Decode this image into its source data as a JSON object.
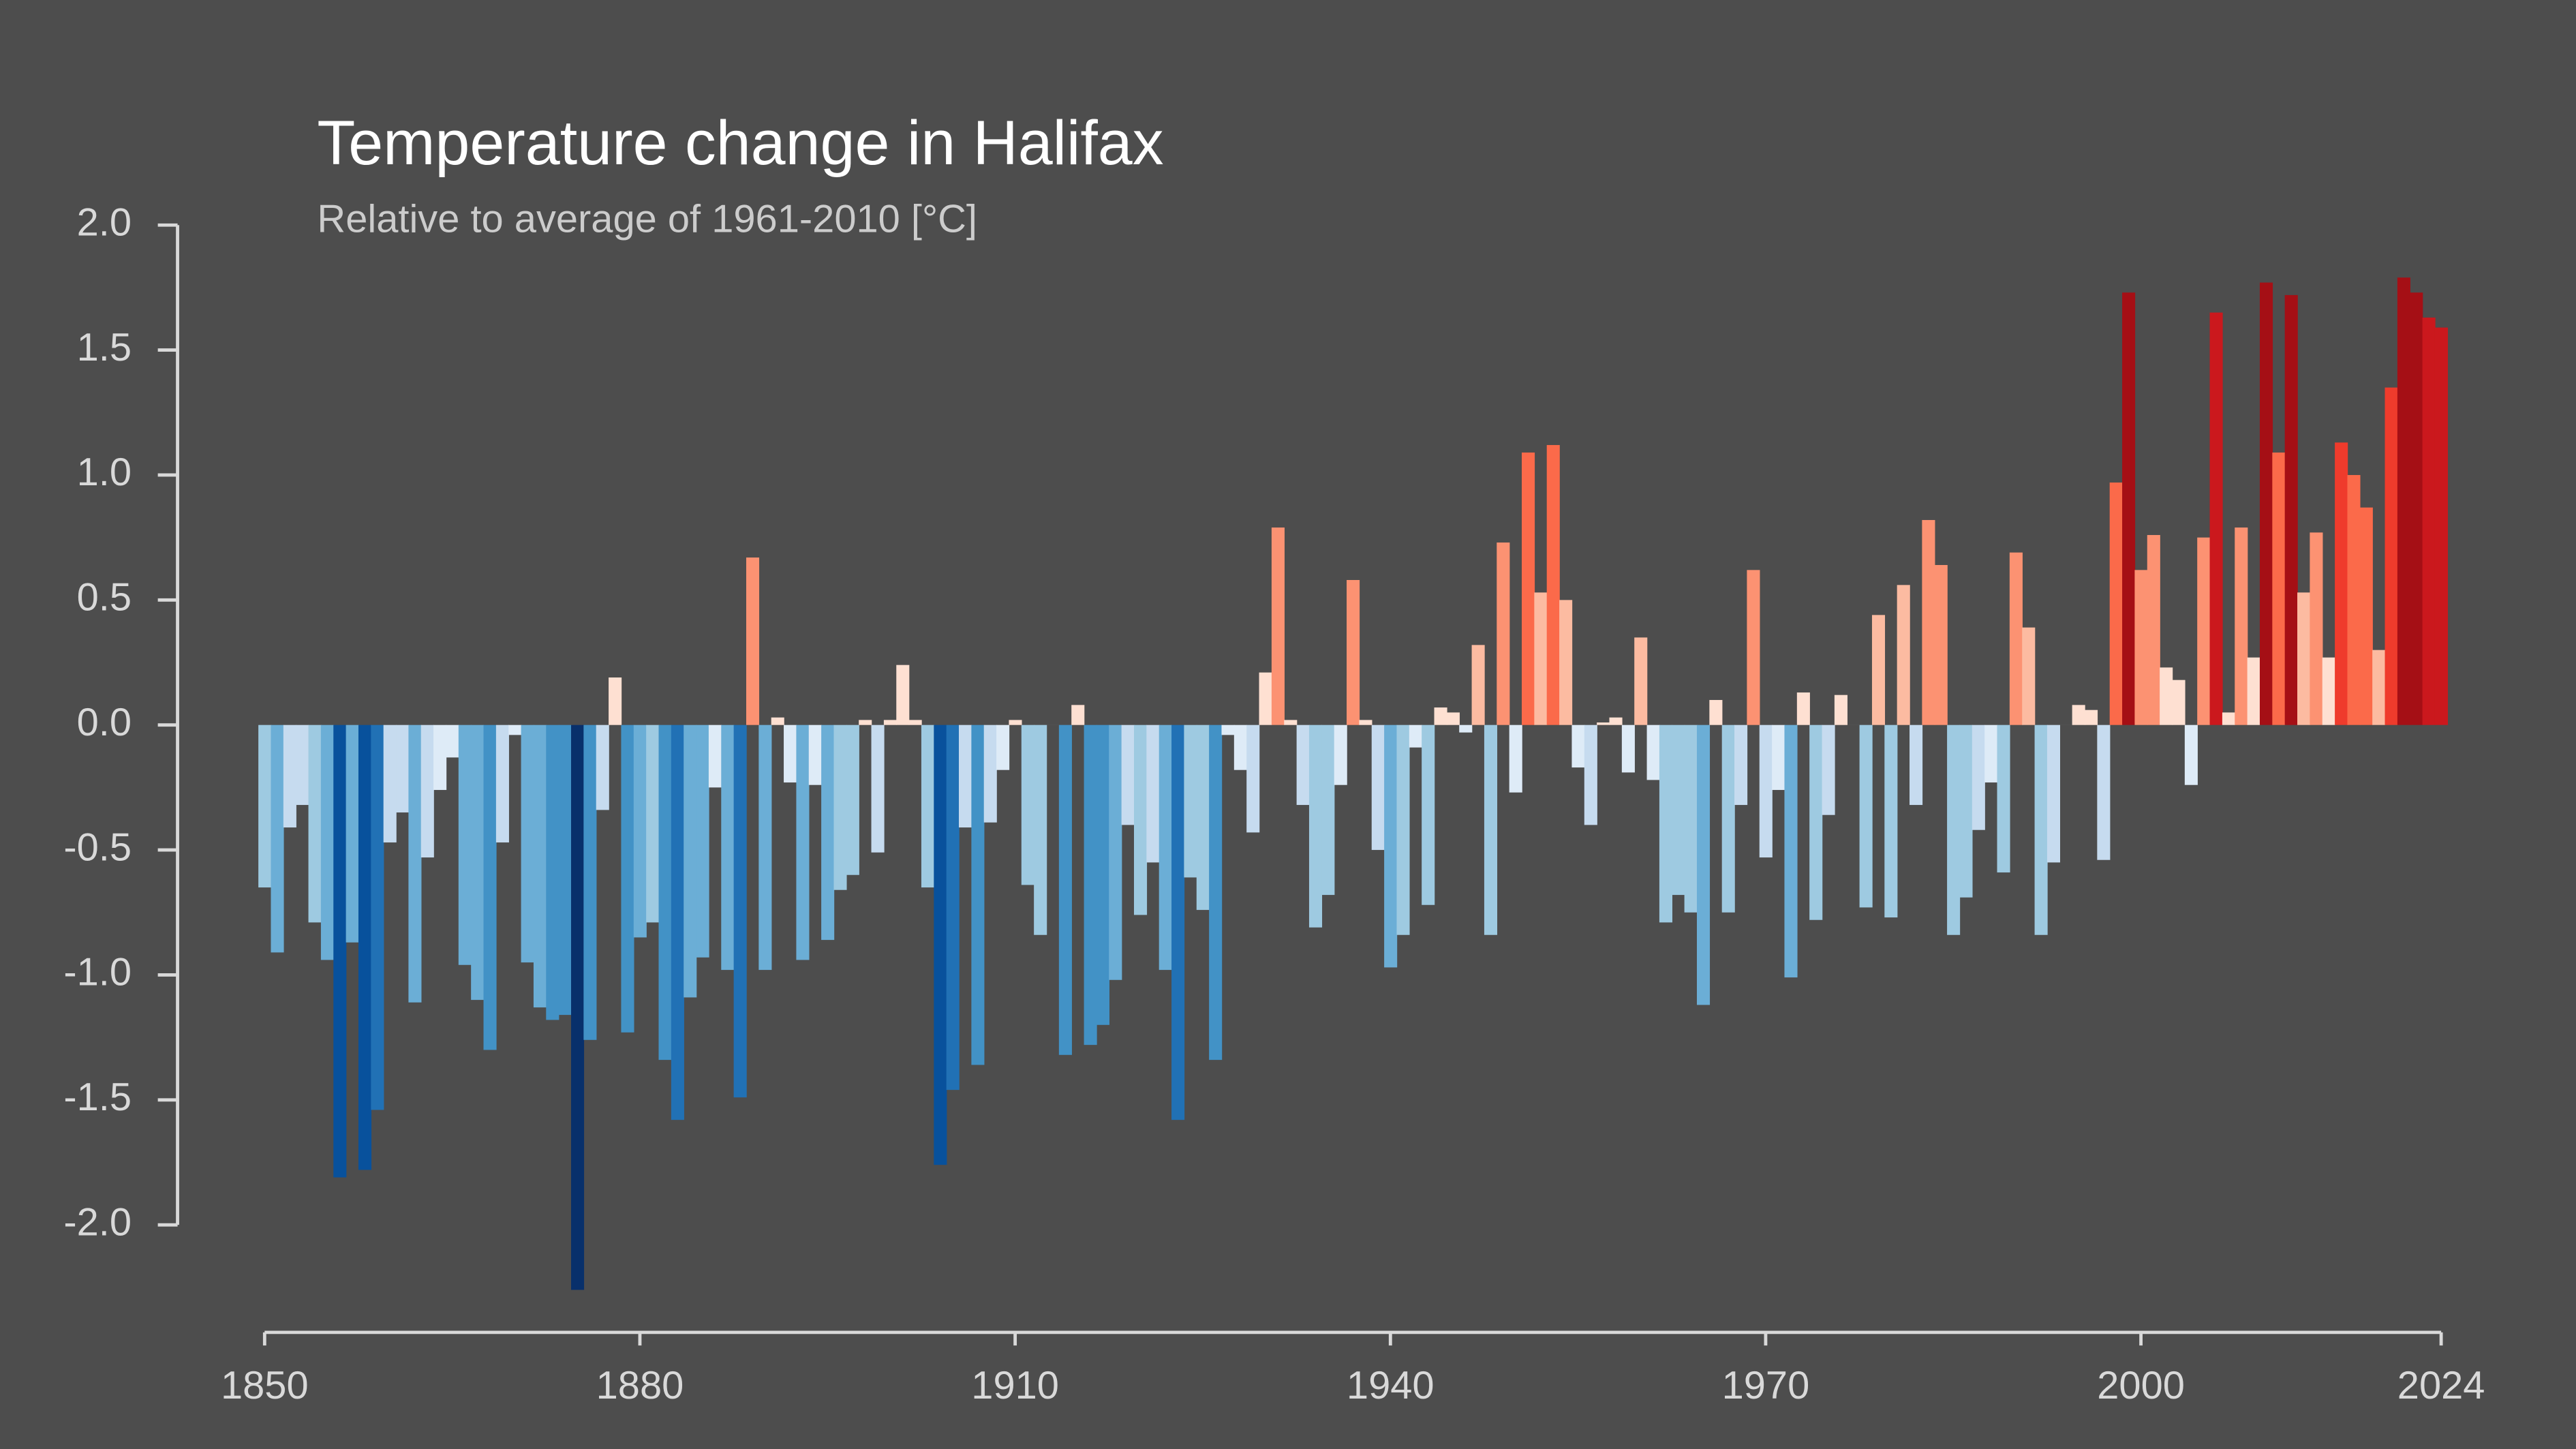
{
  "chart_data": {
    "type": "bar",
    "title": "Temperature change in Halifax",
    "subtitle": "Relative to average of 1961-2010  [°C]",
    "x": [
      1850,
      1851,
      1852,
      1853,
      1854,
      1855,
      1856,
      1857,
      1858,
      1859,
      1860,
      1861,
      1862,
      1863,
      1864,
      1865,
      1866,
      1867,
      1868,
      1869,
      1870,
      1871,
      1872,
      1873,
      1874,
      1875,
      1876,
      1877,
      1878,
      1879,
      1880,
      1881,
      1882,
      1883,
      1884,
      1885,
      1886,
      1887,
      1888,
      1889,
      1890,
      1891,
      1892,
      1893,
      1894,
      1895,
      1896,
      1897,
      1898,
      1899,
      1900,
      1901,
      1902,
      1903,
      1904,
      1905,
      1906,
      1907,
      1908,
      1909,
      1910,
      1911,
      1912,
      1913,
      1914,
      1915,
      1916,
      1917,
      1918,
      1919,
      1920,
      1921,
      1922,
      1923,
      1924,
      1925,
      1926,
      1927,
      1928,
      1929,
      1930,
      1931,
      1932,
      1933,
      1934,
      1935,
      1936,
      1937,
      1938,
      1939,
      1940,
      1941,
      1942,
      1943,
      1944,
      1945,
      1946,
      1947,
      1948,
      1949,
      1950,
      1951,
      1952,
      1953,
      1954,
      1955,
      1956,
      1957,
      1958,
      1959,
      1960,
      1961,
      1962,
      1963,
      1964,
      1965,
      1966,
      1967,
      1968,
      1969,
      1970,
      1971,
      1972,
      1973,
      1974,
      1975,
      1976,
      1977,
      1978,
      1979,
      1980,
      1981,
      1982,
      1983,
      1984,
      1985,
      1986,
      1987,
      1988,
      1989,
      1990,
      1991,
      1992,
      1993,
      1994,
      1995,
      1996,
      1997,
      1998,
      1999,
      2000,
      2001,
      2002,
      2003,
      2004,
      2005,
      2006,
      2007,
      2008,
      2009,
      2010,
      2011,
      2012,
      2013,
      2014,
      2015,
      2016,
      2017,
      2018,
      2019,
      2020,
      2021,
      2022,
      2023,
      2024
    ],
    "values": [
      -0.65,
      -0.91,
      -0.41,
      -0.32,
      -0.79,
      -0.94,
      -1.81,
      -0.87,
      -1.78,
      -1.54,
      -0.47,
      -0.35,
      -1.11,
      -0.53,
      -0.26,
      -0.13,
      -0.96,
      -1.1,
      -1.3,
      -0.47,
      -0.04,
      -0.95,
      -1.13,
      -1.18,
      -1.16,
      -2.26,
      -1.26,
      -0.34,
      0.19,
      -1.23,
      -0.85,
      -0.79,
      -1.34,
      -1.58,
      -1.09,
      -0.93,
      -0.25,
      -0.98,
      -1.49,
      0.67,
      -0.98,
      0.03,
      -0.23,
      -0.94,
      -0.24,
      -0.86,
      -0.66,
      -0.6,
      0.02,
      -0.51,
      0.02,
      0.24,
      0.02,
      -0.65,
      -1.76,
      -1.46,
      -0.41,
      -1.36,
      -0.39,
      -0.18,
      0.02,
      -0.64,
      -0.84,
      0.0,
      -1.32,
      0.08,
      -1.28,
      -1.2,
      -1.02,
      -0.4,
      -0.76,
      -0.55,
      -0.98,
      -1.58,
      -0.61,
      -0.74,
      -1.34,
      -0.04,
      -0.18,
      -0.43,
      0.21,
      0.79,
      0.02,
      -0.32,
      -0.81,
      -0.68,
      -0.24,
      0.58,
      0.02,
      -0.5,
      -0.97,
      -0.84,
      -0.09,
      -0.72,
      0.07,
      0.05,
      -0.03,
      0.32,
      -0.84,
      0.73,
      -0.27,
      1.09,
      0.53,
      1.12,
      0.5,
      -0.17,
      -0.4,
      0.01,
      0.03,
      -0.19,
      0.35,
      -0.22,
      -0.79,
      -0.68,
      -0.75,
      -1.12,
      0.1,
      -0.75,
      -0.32,
      0.62,
      -0.53,
      -0.26,
      -1.01,
      0.13,
      -0.78,
      -0.36,
      0.12,
      0.0,
      -0.73,
      0.44,
      -0.77,
      0.56,
      -0.32,
      0.82,
      0.64,
      -0.84,
      -0.69,
      -0.42,
      -0.23,
      -0.59,
      0.69,
      0.39,
      -0.84,
      -0.55,
      0.0,
      0.08,
      0.06,
      -0.54,
      0.97,
      1.73,
      0.62,
      0.76,
      0.23,
      0.18,
      -0.24,
      0.75,
      1.65,
      0.05,
      0.79,
      0.27,
      1.77,
      1.09,
      1.72,
      0.53,
      0.77,
      0.27,
      1.13,
      1.0,
      0.87,
      0.3,
      1.35,
      1.79,
      1.73,
      1.63,
      1.59
    ],
    "palette": [
      "#08306b",
      "#08519c",
      "#2171b5",
      "#4292c6",
      "#6baed6",
      "#9ecae1",
      "#c6dbef",
      "#deebf7",
      "#fee0d2",
      "#fcbba1",
      "#fc9272",
      "#fb6a4a",
      "#ef3b2c",
      "#cb181d",
      "#a50f15",
      "#67000d"
    ],
    "xlim": [
      1850,
      2024
    ],
    "xticks": [
      1850,
      1880,
      1910,
      1940,
      1970,
      2000,
      2024
    ],
    "ylim": [
      -2.43,
      2.0
    ],
    "yticks": [
      {
        "value": 2,
        "label": "2.0"
      },
      1.5,
      {
        "value": 1,
        "label": "1.0"
      },
      0.5,
      {
        "value": 0,
        "label": "0.0"
      },
      -0.5,
      {
        "value": -1,
        "label": "-1.0"
      },
      -1.5,
      {
        "value": -2,
        "label": "-2.0"
      }
    ],
    "grid": false
  }
}
